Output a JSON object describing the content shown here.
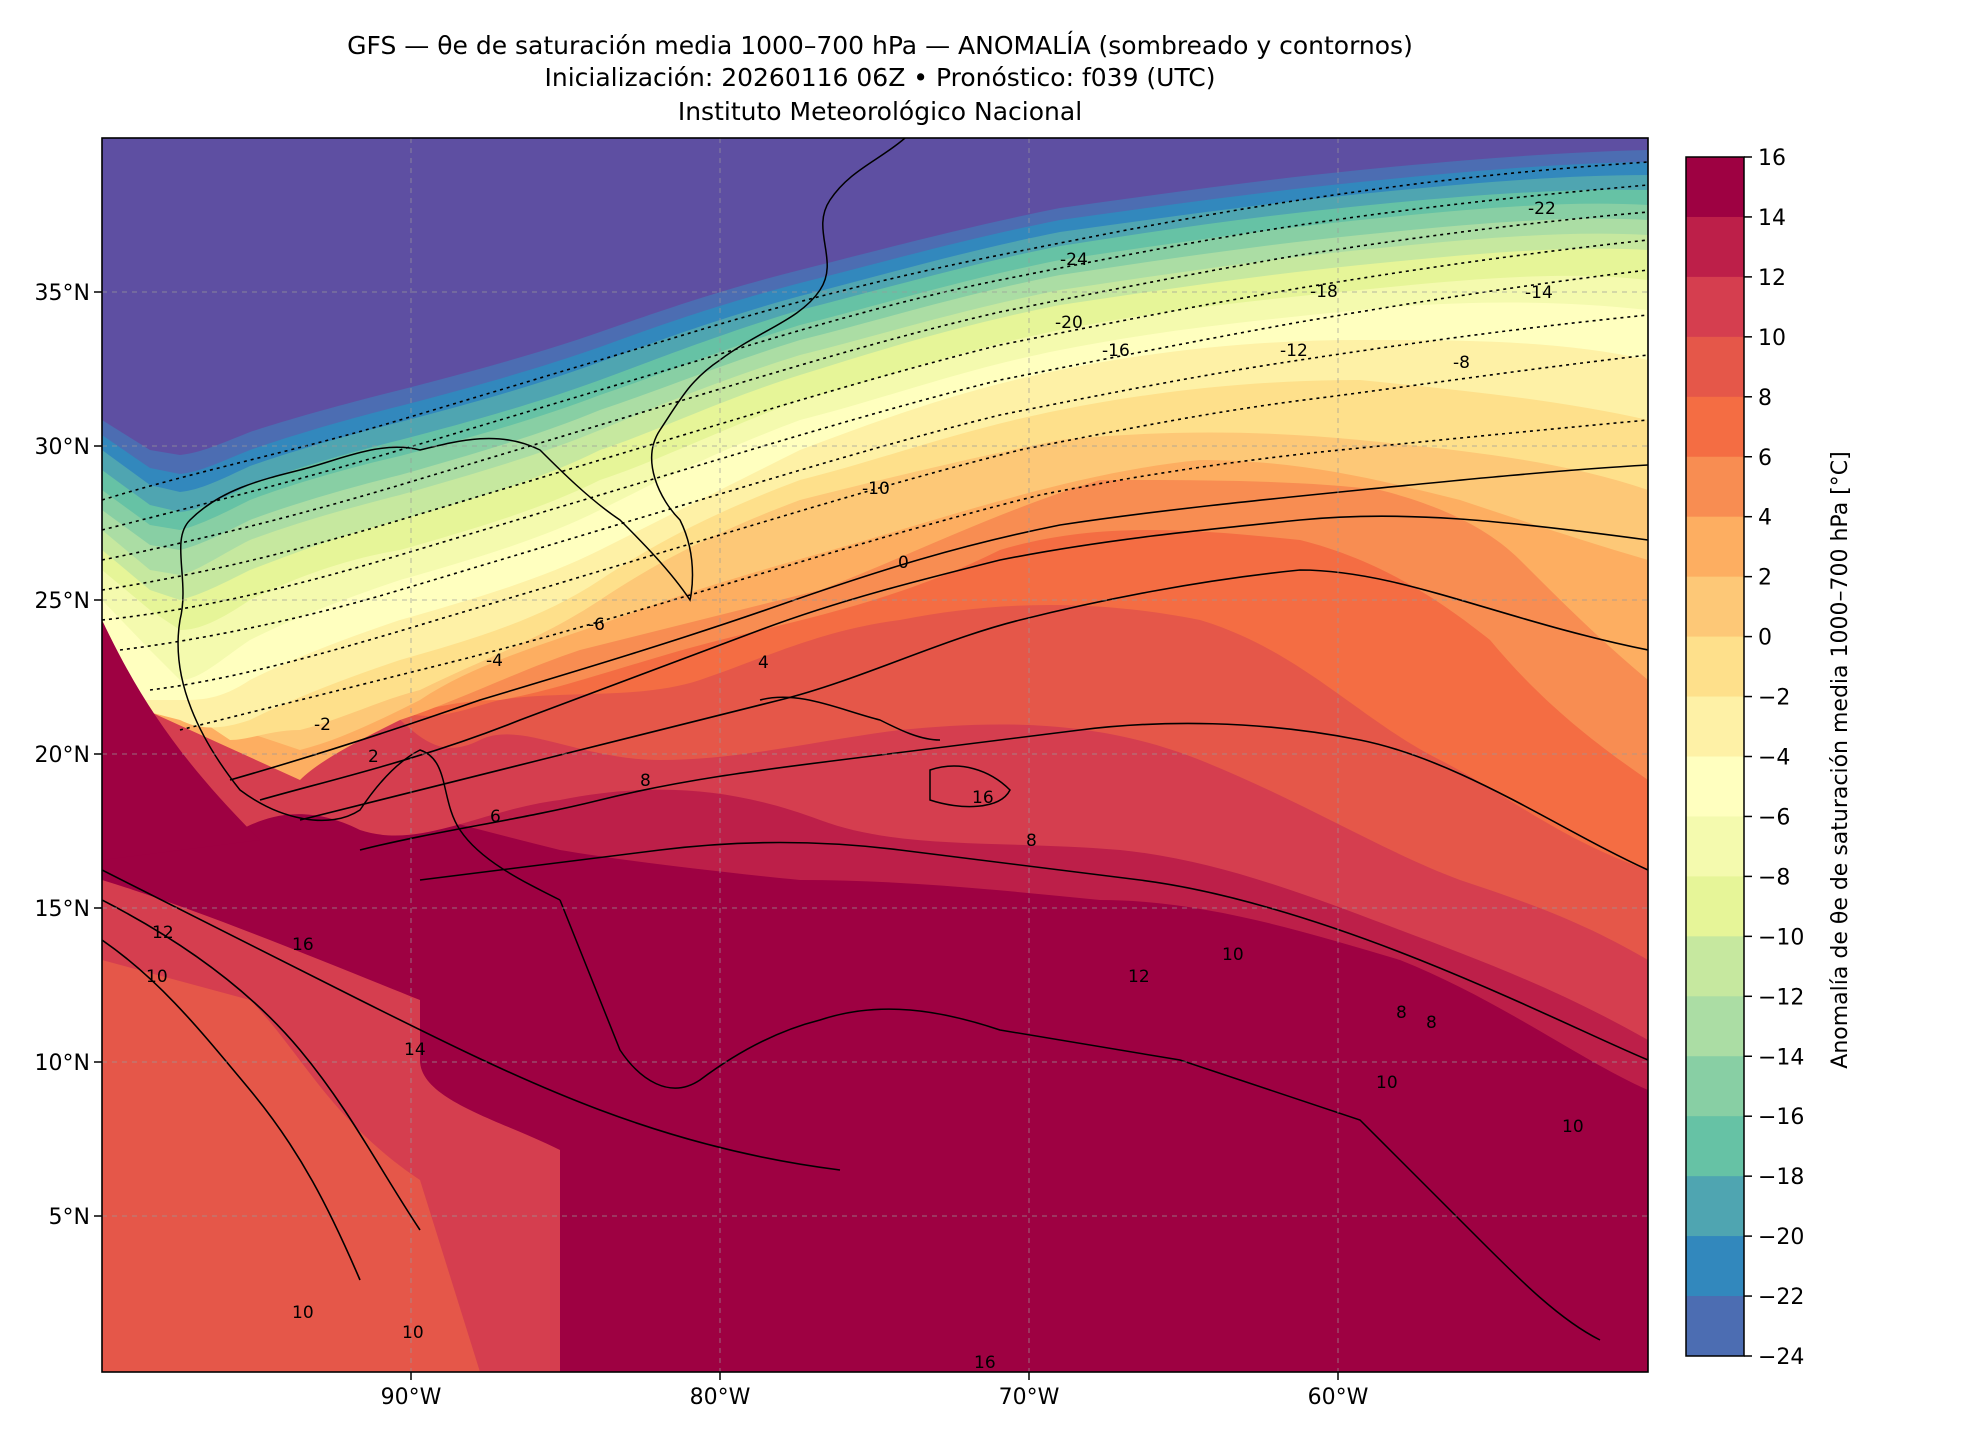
{
  "header": {
    "line1": "GFS — θe de saturación media 1000–700 hPa — ANOMALÍA (sombreado y contornos)",
    "line2": "Inicialización: 20260116 06Z   •   Pronóstico: f039 (UTC)",
    "line3": "Instituto Meteorológico Nacional"
  },
  "map": {
    "lon_labels": [
      "90°W",
      "80°W",
      "70°W",
      "60°W"
    ],
    "lat_labels": [
      "35°N",
      "30°N",
      "25°N",
      "20°N",
      "15°N",
      "10°N",
      "5°N"
    ],
    "contour_labels": [
      "-24",
      "-22",
      "-20",
      "-18",
      "-16",
      "-14",
      "-12",
      "-10",
      "-8",
      "-6",
      "-4",
      "-2",
      "0",
      "2",
      "4",
      "6",
      "8",
      "10",
      "10",
      "10",
      "10",
      "10",
      "10",
      "12",
      "12",
      "14",
      "16",
      "16",
      "16",
      "8",
      "8",
      "8"
    ]
  },
  "colorbar": {
    "label": "Anomalía de θe de saturación media 1000–700 hPa [°C]",
    "ticks": [
      "16",
      "14",
      "12",
      "10",
      "8",
      "6",
      "4",
      "2",
      "0",
      "−2",
      "−4",
      "−6",
      "−8",
      "−10",
      "−12",
      "−14",
      "−16",
      "−18",
      "−20",
      "−22",
      "−24"
    ],
    "colors": [
      "#9e0142",
      "#bd1f49",
      "#d53e4f",
      "#e55749",
      "#f46d43",
      "#f88d52",
      "#fdae61",
      "#fdc877",
      "#fee08b",
      "#fef1a6",
      "#ffffbf",
      "#f4faae",
      "#e6f598",
      "#c6e89f",
      "#abdda4",
      "#88cfa4",
      "#66c2a5",
      "#4fa5b1",
      "#3288bd",
      "#4c6db2",
      "#5e4fa2"
    ]
  }
}
